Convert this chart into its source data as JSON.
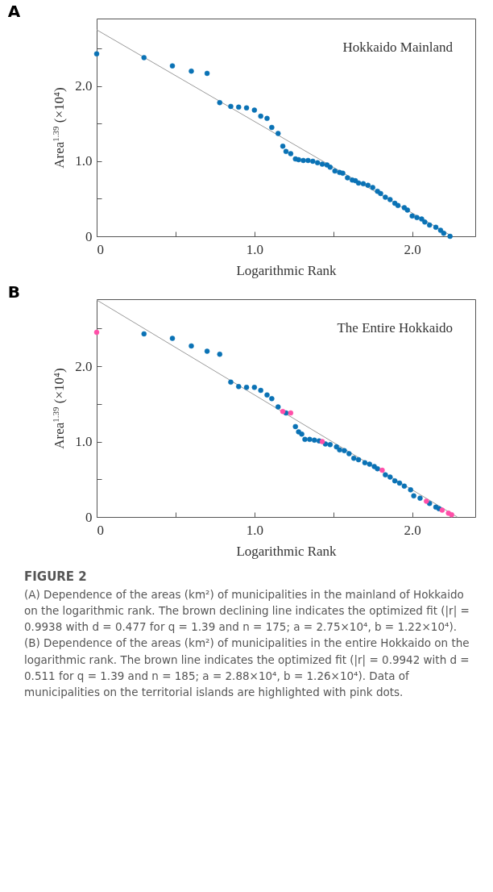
{
  "chart_data": [
    {
      "type": "scatter",
      "title": "A",
      "xlabel": "Logarithmic Rank",
      "ylabel": "Area$^{1.39}$ (×10⁴)",
      "xlim": [
        0,
        2.4
      ],
      "ylim": [
        0,
        2.9
      ],
      "xticks": [
        0,
        {
          "value": 0.5,
          "label": null
        },
        {
          "value": 1,
          "label": "1.0"
        },
        {
          "value": 1.5,
          "label": null
        },
        {
          "value": 2,
          "label": "2.0"
        }
      ],
      "yticks": [
        0,
        {
          "value": 0.5,
          "label": null
        },
        {
          "value": 1,
          "label": "1.0"
        },
        {
          "value": 1.5,
          "label": null
        },
        {
          "value": 2,
          "label": "2.0"
        },
        {
          "value": 2.5,
          "label": null
        }
      ],
      "grid": false,
      "marker": "circle",
      "annotations": [
        "Hokkaido Mainland"
      ],
      "series": [
        {
          "type": "line",
          "marker": "none",
          "color": "#9a9a9a",
          "line_style": "solid",
          "x": [
            0,
            2.254
          ],
          "values": [
            2.75,
            0
          ]
        },
        {
          "color": "#0a72b5",
          "x": [
            0,
            0.3,
            0.48,
            0.6,
            0.7,
            0.78,
            0.85,
            0.9,
            0.95,
            1.0,
            1.04,
            1.08,
            1.11,
            1.15,
            1.18,
            1.2,
            1.23,
            1.26,
            1.28,
            1.31,
            1.34,
            1.37,
            1.4,
            1.43,
            1.46,
            1.48,
            1.51,
            1.54,
            1.56,
            1.59,
            1.62,
            1.64,
            1.66,
            1.69,
            1.72,
            1.75,
            1.78,
            1.8,
            1.83,
            1.86,
            1.89,
            1.91,
            1.95,
            1.97,
            2.0,
            2.03,
            2.06,
            2.08,
            2.11,
            2.15,
            2.18,
            2.2,
            2.24
          ],
          "values": [
            2.43,
            2.38,
            2.27,
            2.2,
            2.17,
            1.78,
            1.73,
            1.72,
            1.71,
            1.68,
            1.6,
            1.57,
            1.45,
            1.37,
            1.2,
            1.13,
            1.1,
            1.03,
            1.02,
            1.01,
            1.01,
            1.0,
            0.98,
            0.96,
            0.95,
            0.92,
            0.87,
            0.85,
            0.84,
            0.78,
            0.75,
            0.74,
            0.71,
            0.7,
            0.68,
            0.65,
            0.6,
            0.57,
            0.52,
            0.49,
            0.44,
            0.41,
            0.38,
            0.35,
            0.27,
            0.25,
            0.23,
            0.19,
            0.15,
            0.12,
            0.08,
            0.04,
            0.0
          ]
        }
      ]
    },
    {
      "type": "scatter",
      "title": "B",
      "xlabel": "Logarithmic Rank",
      "ylabel": "Area$^{1.39}$ (×10⁴)",
      "xlim": [
        0,
        2.4
      ],
      "ylim": [
        0,
        2.89
      ],
      "xticks": [
        0,
        {
          "value": 0.5,
          "label": null
        },
        {
          "value": 1,
          "label": "1.0"
        },
        {
          "value": 1.5,
          "label": null
        },
        {
          "value": 2,
          "label": "2.0"
        }
      ],
      "yticks": [
        0,
        {
          "value": 0.5,
          "label": null
        },
        {
          "value": 1,
          "label": "1.0"
        },
        {
          "value": 1.5,
          "label": null
        },
        {
          "value": 2,
          "label": "2.0"
        },
        {
          "value": 2.5,
          "label": null
        }
      ],
      "grid": false,
      "marker": "circle",
      "annotations": [
        "The Entire Hokkaido",
        "FIGURE 2",
        "(A) Dependence of the areas (km²) of municipalities in the mainland of Hokkaido on the logarithmic rank. The brown declining line indicates the optimized fit (|r| = 0.9938 with d = 0.477 for q = 1.39 and n = 175; a = 2.75×10⁴, b = 1.22×10⁴). (B) Dependence of the areas (km²) of municipalities in the entire Hokkaido on the logarithmic rank. The brown line indicates the optimized fit (|r| = 0.9942 with d = 0.511 for q = 1.39 and n = 185; a = 2.88×10⁴, b = 1.26×10⁴). Data of municipalities on the territorial islands are highlighted with pink dots."
      ],
      "series": [
        {
          "type": "line",
          "marker": "none",
          "color": "#9a9a9a",
          "line_style": "solid",
          "x": [
            0,
            2.286
          ],
          "values": [
            2.88,
            0
          ]
        },
        {
          "color": "#0a72b5",
          "x": [
            0.3,
            0.48,
            0.6,
            0.7,
            0.78,
            0.85,
            0.9,
            0.95,
            1.0,
            1.04,
            1.08,
            1.11,
            1.15,
            1.2,
            1.26,
            1.28,
            1.3,
            1.32,
            1.35,
            1.38,
            1.41,
            1.45,
            1.48,
            1.52,
            1.54,
            1.57,
            1.6,
            1.63,
            1.66,
            1.7,
            1.73,
            1.76,
            1.78,
            1.83,
            1.86,
            1.89,
            1.92,
            1.95,
            1.99,
            2.01,
            2.05,
            2.11,
            2.15,
            2.17
          ],
          "values": [
            2.43,
            2.37,
            2.27,
            2.2,
            2.16,
            1.79,
            1.73,
            1.72,
            1.72,
            1.68,
            1.62,
            1.57,
            1.46,
            1.38,
            1.2,
            1.13,
            1.1,
            1.03,
            1.03,
            1.02,
            1.01,
            0.97,
            0.96,
            0.93,
            0.89,
            0.88,
            0.84,
            0.78,
            0.76,
            0.72,
            0.7,
            0.67,
            0.64,
            0.56,
            0.53,
            0.48,
            0.45,
            0.41,
            0.36,
            0.28,
            0.25,
            0.18,
            0.13,
            0.11
          ]
        },
        {
          "color": "#ff4fa8",
          "x": [
            0,
            1.18,
            1.23,
            1.43,
            1.81,
            2.09,
            2.19,
            2.23,
            2.25
          ],
          "values": [
            2.45,
            1.4,
            1.38,
            1.0,
            0.62,
            0.21,
            0.09,
            0.05,
            0.03
          ]
        }
      ]
    }
  ]
}
